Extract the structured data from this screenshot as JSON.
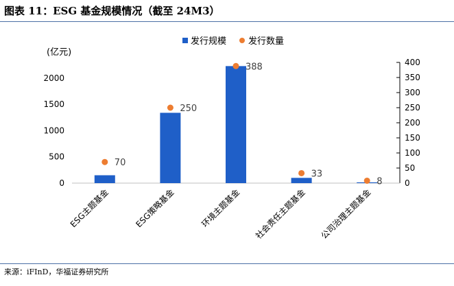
{
  "title": "图表 11：ESG 基金规模情况（截至 24M3）",
  "source": "来源：iFInD，华福证券研究所",
  "colors": {
    "bar": "#1f5fc8",
    "dot": "#ed7d31",
    "rule": "#4a6fa5",
    "axis": "#000000"
  },
  "chart_data": {
    "type": "bar",
    "categories": [
      "ESG主题基金",
      "ESG策略基金",
      "环境主题基金",
      "社会责任主题基金",
      "公司治理主题基金"
    ],
    "series": [
      {
        "name": "发行规模",
        "type": "bar",
        "axis": "left",
        "values": [
          150,
          1340,
          2230,
          100,
          15
        ]
      },
      {
        "name": "发行数量",
        "type": "scatter",
        "axis": "right",
        "values": [
          70,
          250,
          388,
          33,
          8
        ]
      }
    ],
    "y_left": {
      "unit": "(亿元)",
      "ylim": [
        0,
        2300
      ],
      "ticks": [
        0,
        500,
        1000,
        1500,
        2000
      ]
    },
    "y_right": {
      "ylim": [
        0,
        400
      ],
      "ticks": [
        0,
        50,
        100,
        150,
        200,
        250,
        300,
        350,
        400
      ]
    },
    "data_labels": [
      "70",
      "250",
      "388",
      "33",
      "8"
    ],
    "legend": {
      "placement": "top-center",
      "entries": [
        "发行规模",
        "发行数量"
      ]
    },
    "grid": false
  }
}
